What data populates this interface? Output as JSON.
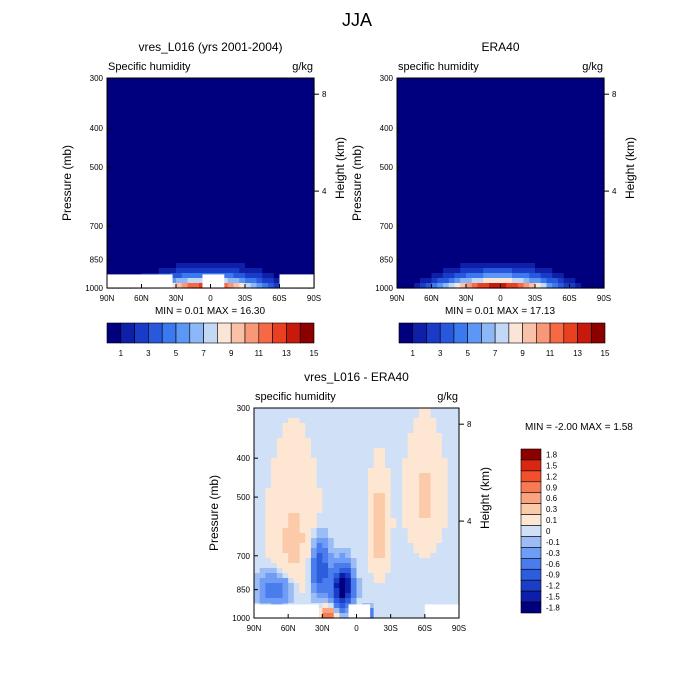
{
  "page_title": "JJA",
  "chart_data": [
    {
      "type": "heatmap",
      "title": "vres_L016 (yrs 2001-2004)",
      "left_string": "Specific humidity",
      "right_string": "g/kg",
      "xlabel": "",
      "ylabel": "Pressure (mb)",
      "ylabel_right": "Height (km)",
      "x_ticks": [
        "90N",
        "60N",
        "30N",
        "0",
        "30S",
        "60S",
        "90S"
      ],
      "y_ticks": [
        "300",
        "400",
        "500",
        "700",
        "850",
        "1000"
      ],
      "height_ticks": [
        "8",
        "4"
      ],
      "min": 0.01,
      "max": 16.3,
      "stats_text": "MIN =   0.01   MAX =   16.30",
      "levels": [
        1,
        2,
        3,
        4,
        5,
        6,
        7,
        8,
        9,
        10,
        11,
        12,
        13,
        14,
        15
      ],
      "colorbar_labels": [
        "1",
        "3",
        "5",
        "7",
        "9",
        "11",
        "13",
        "15"
      ],
      "field": {
        "peak": 16.3,
        "peak_lat": 2,
        "spread": 52,
        "surface_decay": 0.0016,
        "masked": [
          [
            -90,
            -60
          ],
          [
            -12,
            7
          ],
          [
            33,
            90
          ]
        ]
      }
    },
    {
      "type": "heatmap",
      "title": "ERA40",
      "left_string": "specific humidity",
      "right_string": "g/kg",
      "xlabel": "",
      "ylabel": "Pressure (mb)",
      "ylabel_right": "Height (km)",
      "x_ticks": [
        "90N",
        "60N",
        "30N",
        "0",
        "30S",
        "60S",
        "90S"
      ],
      "y_ticks": [
        "300",
        "400",
        "500",
        "700",
        "850",
        "1000"
      ],
      "height_ticks": [
        "8",
        "4"
      ],
      "min": 0.01,
      "max": 17.13,
      "stats_text": "MIN =   0.01   MAX =   17.13",
      "levels": [
        1,
        2,
        3,
        4,
        5,
        6,
        7,
        8,
        9,
        10,
        11,
        12,
        13,
        14,
        15
      ],
      "colorbar_labels": [
        "1",
        "3",
        "5",
        "7",
        "9",
        "11",
        "13",
        "15"
      ],
      "field": {
        "peak": 17.13,
        "peak_lat": 3,
        "spread": 54,
        "surface_decay": 0.0016,
        "masked": []
      }
    },
    {
      "type": "heatmap",
      "title": "vres_L016 - ERA40",
      "left_string": "specific humidity",
      "right_string": "g/kg",
      "xlabel": "",
      "ylabel": "Pressure (mb)",
      "ylabel_right": "Height (km)",
      "x_ticks": [
        "90N",
        "60N",
        "30N",
        "0",
        "30S",
        "60S",
        "90S"
      ],
      "y_ticks": [
        "300",
        "400",
        "500",
        "700",
        "850",
        "1000"
      ],
      "height_ticks": [
        "8",
        "4"
      ],
      "min": -2.0,
      "max": 1.58,
      "stats_text": "MIN =  -2.00   MAX =    1.58",
      "levels": [
        -1.8,
        -1.5,
        -1.2,
        -0.9,
        -0.6,
        -0.3,
        -0.1,
        0,
        0.1,
        0.3,
        0.6,
        0.9,
        1.2,
        1.5,
        1.8
      ],
      "colorbar_labels": [
        "1.8",
        "1.5",
        "1.2",
        "0.9",
        "0.6",
        "0.3",
        "0.1",
        "0",
        "-0.1",
        "-0.3",
        "-0.6",
        "-0.9",
        "-1.2",
        "-1.5",
        "-1.8"
      ],
      "field": {
        "masked": [
          [
            -90,
            -60
          ],
          [
            -12,
            7
          ],
          [
            33,
            90
          ]
        ]
      }
    }
  ],
  "colors": {
    "humidity_palette": [
      "#00007f",
      "#0e1fa8",
      "#1a3bc8",
      "#2858dc",
      "#3c78ee",
      "#5c97f5",
      "#8cb8f8",
      "#c3d8f5",
      "#fbe5d6",
      "#f9c1a8",
      "#f89878",
      "#f56a45",
      "#e84020",
      "#c81a0c",
      "#8c0000"
    ],
    "difference_palette": [
      "#00007f",
      "#0d1faa",
      "#1b3ec8",
      "#2c5ddc",
      "#4a7ced",
      "#6f9cf4",
      "#9cbcf6",
      "#d0e0f6",
      "#fde7d3",
      "#fbcaa8",
      "#f9a37f",
      "#f77a55",
      "#f24f2c",
      "#d82812",
      "#8c0000"
    ],
    "missing": "#ffffff"
  }
}
